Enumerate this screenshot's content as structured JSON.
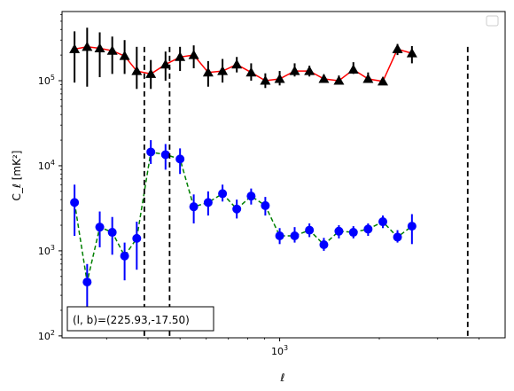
{
  "chart_data": {
    "type": "scatter",
    "xscale": "log",
    "yscale": "log",
    "xlim": [
      220,
      4800
    ],
    "ylim": [
      95,
      650000
    ],
    "xlabel": "ℓ",
    "ylabel": "C_ℓ  [mK²]",
    "yticks": [
      {
        "value": 100,
        "base": "10",
        "exp": "2"
      },
      {
        "value": 1000,
        "base": "10",
        "exp": "3"
      },
      {
        "value": 10000,
        "base": "10",
        "exp": "4"
      },
      {
        "value": 100000,
        "base": "10",
        "exp": "5"
      }
    ],
    "xticks": [
      {
        "value": 1000,
        "base": "10",
        "exp": "3"
      }
    ],
    "vlines": [
      390,
      465,
      3700
    ],
    "annotation": "(l, b)=(225.93,-17.50)",
    "legend": {
      "position": "top-right",
      "entries": []
    },
    "series": [
      {
        "marker": "triangle",
        "line_color": "#ff0000",
        "line_style": "solid",
        "marker_color": "#000000",
        "errorbar_color": "#000000",
        "points": [
          {
            "x": 240,
            "y": 235000,
            "lo": 95000,
            "hi": 380000
          },
          {
            "x": 262,
            "y": 250000,
            "lo": 85000,
            "hi": 420000
          },
          {
            "x": 286,
            "y": 240000,
            "lo": 110000,
            "hi": 370000
          },
          {
            "x": 312,
            "y": 225000,
            "lo": 120000,
            "hi": 330000
          },
          {
            "x": 340,
            "y": 195000,
            "lo": 120000,
            "hi": 300000
          },
          {
            "x": 370,
            "y": 130000,
            "lo": 80000,
            "hi": 250000
          },
          {
            "x": 408,
            "y": 120000,
            "lo": 80000,
            "hi": 175000
          },
          {
            "x": 452,
            "y": 155000,
            "lo": 100000,
            "hi": 220000
          },
          {
            "x": 500,
            "y": 190000,
            "lo": 130000,
            "hi": 250000
          },
          {
            "x": 550,
            "y": 200000,
            "lo": 140000,
            "hi": 260000
          },
          {
            "x": 608,
            "y": 125000,
            "lo": 85000,
            "hi": 170000
          },
          {
            "x": 672,
            "y": 130000,
            "lo": 95000,
            "hi": 180000
          },
          {
            "x": 742,
            "y": 155000,
            "lo": 125000,
            "hi": 190000
          },
          {
            "x": 820,
            "y": 125000,
            "lo": 100000,
            "hi": 160000
          },
          {
            "x": 905,
            "y": 100000,
            "lo": 82000,
            "hi": 122000
          },
          {
            "x": 1000,
            "y": 105000,
            "lo": 88000,
            "hi": 130000
          },
          {
            "x": 1110,
            "y": 130000,
            "lo": 112000,
            "hi": 160000
          },
          {
            "x": 1230,
            "y": 130000,
            "lo": 112000,
            "hi": 150000
          },
          {
            "x": 1360,
            "y": 105000,
            "lo": 95000,
            "hi": 118000
          },
          {
            "x": 1510,
            "y": 100000,
            "lo": 90000,
            "hi": 115000
          },
          {
            "x": 1670,
            "y": 135000,
            "lo": 120000,
            "hi": 165000
          },
          {
            "x": 1850,
            "y": 105000,
            "lo": 95000,
            "hi": 125000
          },
          {
            "x": 2050,
            "y": 98000,
            "lo": 90000,
            "hi": 108000
          },
          {
            "x": 2270,
            "y": 235000,
            "lo": 200000,
            "hi": 270000
          },
          {
            "x": 2510,
            "y": 210000,
            "lo": 160000,
            "hi": 255000
          }
        ]
      },
      {
        "marker": "circle",
        "line_color": "#008000",
        "line_style": "dashed",
        "marker_color": "#0000ff",
        "errorbar_color": "#0000ff",
        "points": [
          {
            "x": 240,
            "y": 3700,
            "lo": 1500,
            "hi": 6000
          },
          {
            "x": 262,
            "y": 430,
            "lo": 200,
            "hi": 700
          },
          {
            "x": 286,
            "y": 1900,
            "lo": 1100,
            "hi": 2900
          },
          {
            "x": 312,
            "y": 1650,
            "lo": 900,
            "hi": 2500
          },
          {
            "x": 340,
            "y": 870,
            "lo": 450,
            "hi": 1250
          },
          {
            "x": 370,
            "y": 1400,
            "lo": 600,
            "hi": 2200
          },
          {
            "x": 408,
            "y": 14500,
            "lo": 10500,
            "hi": 20000
          },
          {
            "x": 452,
            "y": 13500,
            "lo": 9000,
            "hi": 18000
          },
          {
            "x": 500,
            "y": 12000,
            "lo": 8000,
            "hi": 16000
          },
          {
            "x": 550,
            "y": 3300,
            "lo": 2100,
            "hi": 4600
          },
          {
            "x": 608,
            "y": 3700,
            "lo": 2600,
            "hi": 5000
          },
          {
            "x": 672,
            "y": 4700,
            "lo": 3800,
            "hi": 6000
          },
          {
            "x": 742,
            "y": 3100,
            "lo": 2400,
            "hi": 4000
          },
          {
            "x": 820,
            "y": 4400,
            "lo": 3500,
            "hi": 5400
          },
          {
            "x": 905,
            "y": 3400,
            "lo": 2600,
            "hi": 4300
          },
          {
            "x": 1000,
            "y": 1500,
            "lo": 1200,
            "hi": 1850
          },
          {
            "x": 1110,
            "y": 1500,
            "lo": 1250,
            "hi": 1900
          },
          {
            "x": 1230,
            "y": 1750,
            "lo": 1450,
            "hi": 2100
          },
          {
            "x": 1360,
            "y": 1180,
            "lo": 1000,
            "hi": 1420
          },
          {
            "x": 1510,
            "y": 1700,
            "lo": 1400,
            "hi": 2000
          },
          {
            "x": 1670,
            "y": 1650,
            "lo": 1400,
            "hi": 1950
          },
          {
            "x": 1850,
            "y": 1800,
            "lo": 1500,
            "hi": 2100
          },
          {
            "x": 2050,
            "y": 2200,
            "lo": 1850,
            "hi": 2600
          },
          {
            "x": 2270,
            "y": 1450,
            "lo": 1250,
            "hi": 1750
          },
          {
            "x": 2510,
            "y": 1950,
            "lo": 1200,
            "hi": 2700
          }
        ]
      }
    ]
  }
}
